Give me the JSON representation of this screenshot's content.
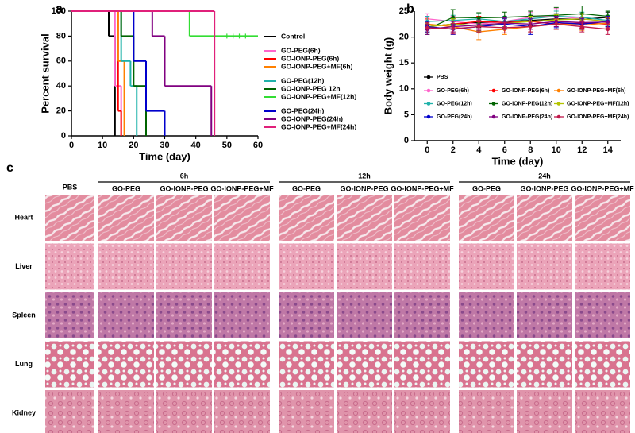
{
  "panels": [
    "a",
    "b",
    "c"
  ],
  "chart_data": [
    {
      "type": "step",
      "ylabel": "Percent survival",
      "xlabel": "Time (day)",
      "xlim": [
        0,
        60
      ],
      "xticks": [
        0,
        10,
        20,
        30,
        40,
        50,
        60
      ],
      "ylim": [
        0,
        100
      ],
      "yticks": [
        0,
        20,
        40,
        60,
        80,
        100
      ],
      "series": [
        {
          "name": "Control",
          "color": "#000000",
          "x": [
            0,
            12,
            14
          ],
          "values": [
            100,
            80,
            0
          ]
        },
        {
          "name": "GO-PEG(6h)",
          "color": "#ff66cc",
          "x": [
            0,
            14,
            16
          ],
          "values": [
            100,
            40,
            0
          ]
        },
        {
          "name": "GO-IONP-PEG(6h)",
          "color": "#ff0000",
          "x": [
            0,
            15,
            16
          ],
          "values": [
            100,
            20,
            0
          ]
        },
        {
          "name": "GO-IONP-PEG+MF(6h)",
          "color": "#ff8000",
          "x": [
            0,
            15,
            17
          ],
          "values": [
            100,
            60,
            0
          ]
        },
        {
          "name": "GO-PEG(12h)",
          "color": "#20b2aa",
          "x": [
            0,
            16,
            19,
            21
          ],
          "values": [
            100,
            60,
            40,
            0
          ]
        },
        {
          "name": "GO-IONP-PEG 12h",
          "color": "#006400",
          "x": [
            0,
            16,
            20,
            24
          ],
          "values": [
            100,
            80,
            40,
            0
          ]
        },
        {
          "name": "GO-IONP-PEG+MF(12h)",
          "color": "#33dd33",
          "x": [
            0,
            38,
            60
          ],
          "values": [
            100,
            80,
            80
          ],
          "censored": [
            50,
            52,
            54,
            56
          ]
        },
        {
          "name": "GO-PEG(24h)",
          "color": "#0000cc",
          "x": [
            0,
            20,
            24,
            30
          ],
          "values": [
            100,
            60,
            20,
            0
          ]
        },
        {
          "name": "GO-IONP-PEG(24h)",
          "color": "#800080",
          "x": [
            0,
            26,
            30,
            45
          ],
          "values": [
            100,
            80,
            40,
            0
          ]
        },
        {
          "name": "GO-IONP-PEG+MF(24h)",
          "color": "#e0207a",
          "x": [
            0,
            46
          ],
          "values": [
            100,
            0
          ]
        }
      ]
    },
    {
      "type": "line",
      "ylabel": "Body weight (g)",
      "xlabel": "Time (day)",
      "x": [
        0,
        2,
        4,
        6,
        8,
        10,
        12,
        14
      ],
      "xlim": [
        -1,
        15
      ],
      "xticks": [
        0,
        2,
        4,
        6,
        8,
        10,
        12,
        14
      ],
      "ylim": [
        0,
        25
      ],
      "yticks": [
        0,
        5,
        10,
        15,
        20,
        25
      ],
      "series": [
        {
          "name": "PBS",
          "color": "#000000",
          "values": [
            22,
            22.5,
            22.8,
            23,
            23.2,
            23.5,
            23.4,
            23.8
          ],
          "errors": [
            1,
            1,
            1,
            1,
            1,
            1,
            1,
            1
          ]
        },
        {
          "name": "GO-PEG(6h)",
          "color": "#ff66cc",
          "values": [
            23.5,
            23,
            22.5,
            23,
            23.8,
            24,
            23.5,
            23
          ],
          "errors": [
            1,
            1,
            1,
            1,
            1,
            1.5,
            1,
            1
          ]
        },
        {
          "name": "GO-IONP-PEG(6h)",
          "color": "#ff0000",
          "values": [
            22,
            22.5,
            23,
            22.8,
            23,
            22.5,
            22.7,
            22.5
          ],
          "errors": [
            1,
            1,
            1,
            1,
            1,
            1,
            1,
            1
          ]
        },
        {
          "name": "GO-IONP-PEG+MF(6h)",
          "color": "#ff8000",
          "values": [
            22.5,
            22,
            21,
            21.5,
            22,
            22.5,
            22.3,
            22.7
          ],
          "errors": [
            1,
            1,
            1.5,
            1,
            1,
            1,
            1,
            1
          ]
        },
        {
          "name": "GO-PEG(12h)",
          "color": "#20b2aa",
          "values": [
            23,
            23.2,
            23.5,
            23,
            23.5,
            24,
            23.8,
            23.2
          ],
          "errors": [
            1,
            1,
            1,
            1,
            1,
            1,
            1,
            1
          ]
        },
        {
          "name": "GO-IONP-PEG(12h)",
          "color": "#006400",
          "values": [
            21.5,
            23.8,
            23.7,
            23.8,
            24,
            24.2,
            24.5,
            24
          ],
          "errors": [
            1,
            1.5,
            1,
            1,
            1,
            1.5,
            1.5,
            1
          ]
        },
        {
          "name": "GO-IONP-PEG+MF(12h)",
          "color": "#b5c400",
          "values": [
            22,
            22.5,
            22.2,
            22.6,
            23,
            23.3,
            23.5,
            23
          ],
          "errors": [
            1,
            1,
            1,
            1,
            1,
            1,
            1,
            1
          ]
        },
        {
          "name": "GO-PEG(24h)",
          "color": "#0000cc",
          "values": [
            22,
            21.5,
            22,
            22.5,
            22,
            22.8,
            22.5,
            23
          ],
          "errors": [
            1,
            1,
            1,
            1,
            1.5,
            1,
            1,
            1
          ]
        },
        {
          "name": "GO-IONP-PEG(24h)",
          "color": "#800080",
          "values": [
            21.5,
            22,
            22.3,
            22.7,
            22.5,
            23,
            22.8,
            22.9
          ],
          "errors": [
            1,
            1,
            1,
            1,
            1,
            1,
            1,
            1
          ]
        },
        {
          "name": "GO-IONP-PEG+MF(24h)",
          "color": "#c0184a",
          "values": [
            21.8,
            21.6,
            22,
            21.8,
            22,
            22.5,
            22,
            21.5
          ],
          "errors": [
            1,
            1,
            1,
            1,
            1,
            1,
            1,
            1
          ]
        }
      ]
    }
  ],
  "histology": {
    "control": "PBS",
    "groups": [
      "6h",
      "12h",
      "24h"
    ],
    "columns": [
      "GO-PEG",
      "GO-IONP-PEG",
      "GO-IONP-PEG+MF"
    ],
    "organs": [
      "Heart",
      "Liver",
      "Spleen",
      "Lung",
      "Kidney"
    ]
  }
}
